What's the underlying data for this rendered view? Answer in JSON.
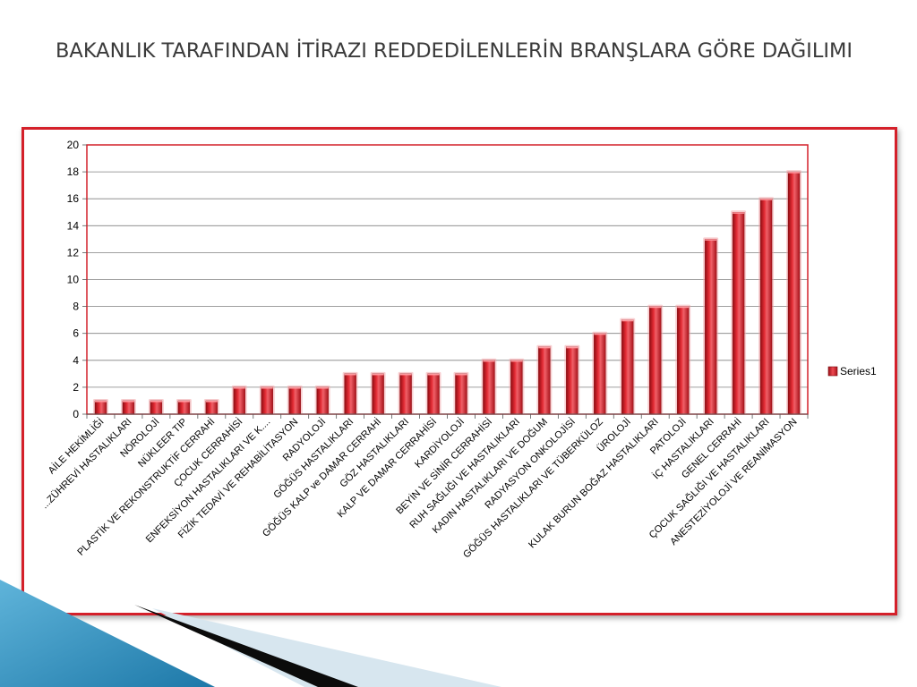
{
  "slide": {
    "title": "BAKANLIK TARAFINDAN İTİRAZI REDDEDİLENLERİN BRANŞLARA GÖRE DAĞILIMI"
  },
  "colors": {
    "accent": "#d4202a",
    "bar": "#e0252e",
    "frame": "#d4202a",
    "gridline": "#7f7f7f"
  },
  "chart_data": {
    "type": "bar",
    "title": "",
    "xlabel": "",
    "ylabel": "",
    "ylim": [
      0,
      20
    ],
    "yticks": [
      0,
      2,
      4,
      6,
      8,
      10,
      12,
      14,
      16,
      18,
      20
    ],
    "grid": true,
    "legend": "right",
    "categories": [
      "AİLE HEKİMLİĞİ",
      "...ZÜHREVİ HASTALIKLARI",
      "NÖROLOJİ",
      "NÜKLEER TIP",
      "PLASTİK VE REKONSTRUKTİF CERRAHİ",
      "ÇOCUK CERRAHİSİ",
      "ENFEKSİYON HASTALIKLARI VE K....",
      "FİZİK TEDAVİ VE REHABİLİTASYON",
      "RADYOLOJİ",
      "GÖĞÜS HASTALIKLARI",
      "GÖĞÜS KALP ve DAMAR CERRAHİ",
      "GÖZ HASTALIKLARI",
      "KALP VE DAMAR CERRAHİSİ",
      "KARDİYOLOJİ",
      "BEYİN VE SİNİR CERRAHİSİ",
      "RUH SAĞLIĞI VE HASTALIKLARI",
      "KADIN HASTALIKLARI VE DOĞUM",
      "RADYASYON ONKOLOJİSİ",
      "GÖĞÜS HASTALIKLARI VE TÜBERKÜLOZ",
      "ÜROLOJİ",
      "KULAK BURUN BOĞAZ HASTALIKLARI",
      "PATOLOJİ",
      "İÇ HASTALIKLARI",
      "GENEL CERRAHİ",
      "ÇOCUK SAĞLIĞI VE HASTALIKLARI",
      "ANESTEZİYOLOJİ VE REANİMASYON"
    ],
    "series": [
      {
        "name": "Series1",
        "values": [
          1,
          1,
          1,
          1,
          1,
          2,
          2,
          2,
          2,
          3,
          3,
          3,
          3,
          3,
          4,
          4,
          5,
          5,
          6,
          7,
          8,
          8,
          13,
          15,
          16,
          18
        ]
      }
    ]
  }
}
